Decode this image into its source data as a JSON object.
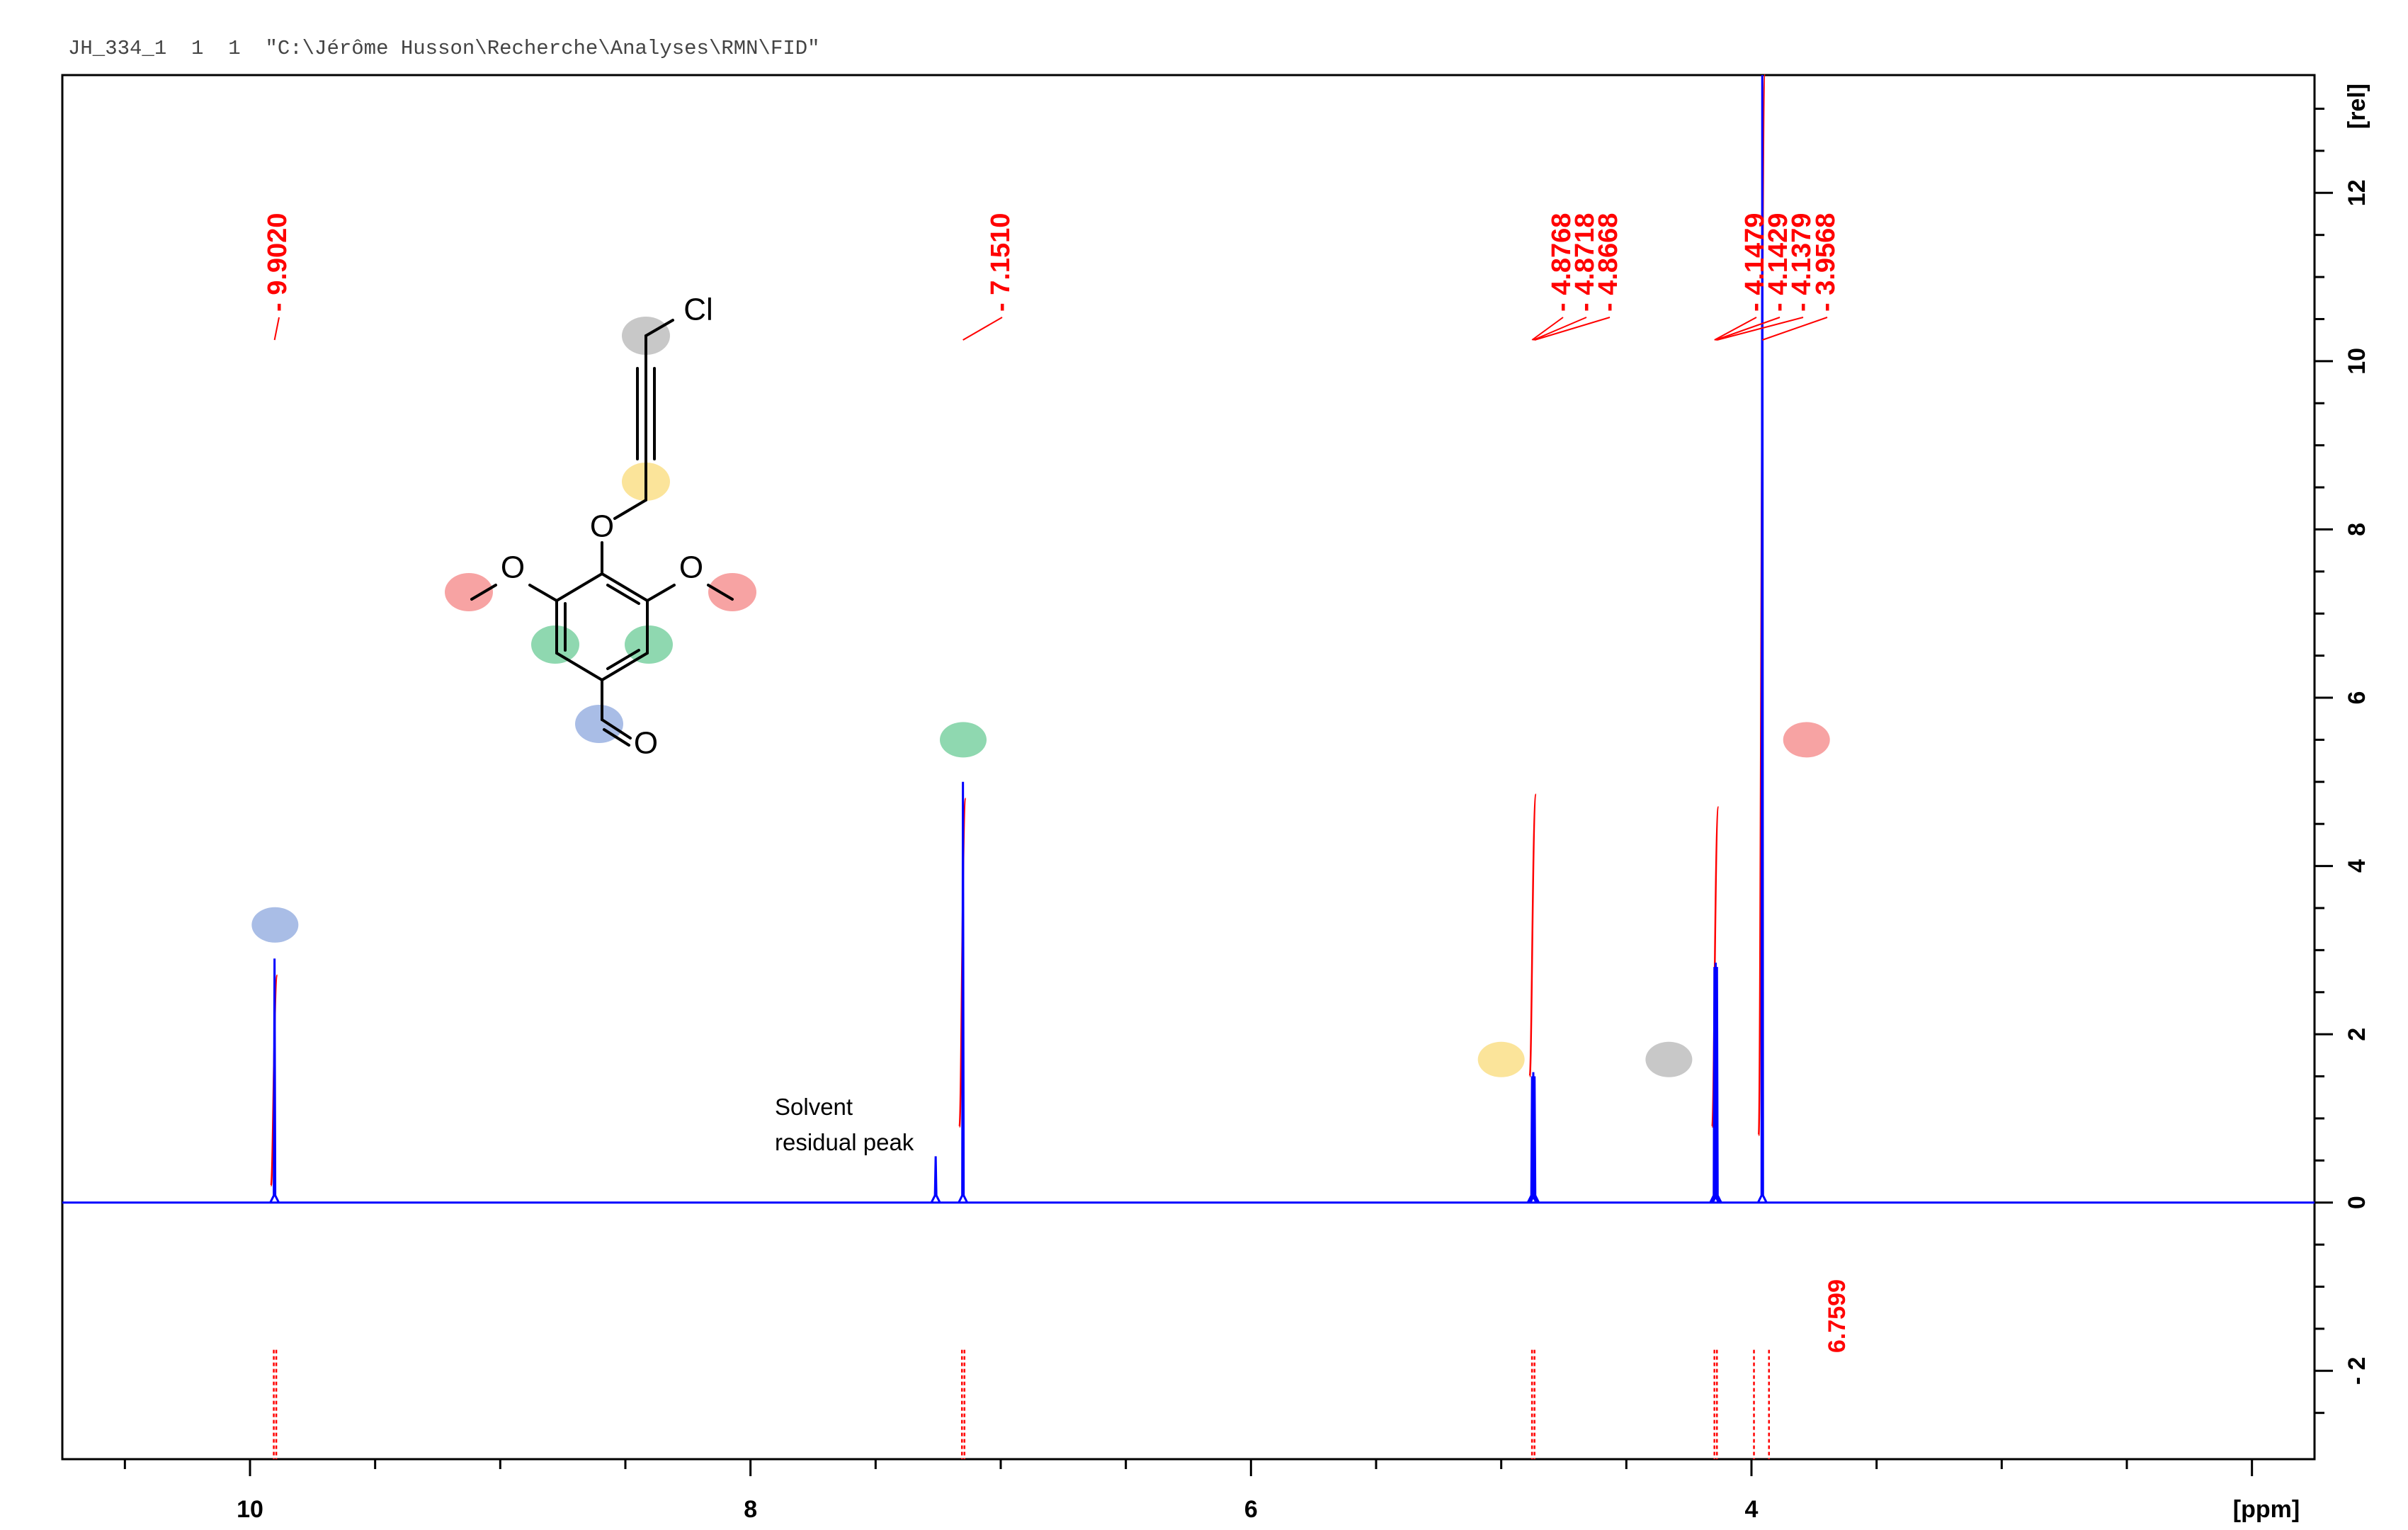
{
  "header": "JH_334_1  1  1  \"C:\\Jérôme Husson\\Recherche\\Analyses\\RMN\\FID\"",
  "colors": {
    "spectrum": "#0000ff",
    "integral": "#ff0000",
    "markers": {
      "blue": "#a9bde6",
      "green": "#8fd8b0",
      "yellow": "#fbe49a",
      "gray": "#c8c8c8",
      "red": "#f7a3a3"
    }
  },
  "chart_data": {
    "type": "line",
    "xlabel": "[ppm]",
    "ylabel": "[rel]",
    "xlim": [
      10.75,
      1.75
    ],
    "ylim": [
      -3.05,
      13.4
    ],
    "x_ticks": [
      10,
      8,
      6,
      4
    ],
    "y_ticks": [
      -2,
      0,
      2,
      4,
      6,
      8,
      10,
      12
    ],
    "peak_labels": [
      "9.9020",
      "7.1510",
      "4.8768",
      "4.8718",
      "4.8668",
      "4.1479",
      "4.1429",
      "4.1379",
      "3.9568"
    ],
    "peaks": [
      {
        "ppm": 9.902,
        "height": 2.9
      },
      {
        "ppm": 7.151,
        "height": 5.0
      },
      {
        "ppm": 7.26,
        "height": 0.55
      },
      {
        "ppm": 4.8768,
        "height": 1.5
      },
      {
        "ppm": 4.8718,
        "height": 1.55
      },
      {
        "ppm": 4.8668,
        "height": 1.5
      },
      {
        "ppm": 4.1479,
        "height": 2.8
      },
      {
        "ppm": 4.1429,
        "height": 2.85
      },
      {
        "ppm": 4.1379,
        "height": 2.8
      },
      {
        "ppm": 3.9568,
        "height": 13.4
      }
    ],
    "integral_labels": [
      "6.7599"
    ],
    "annotation": "Solvent\nresidual peak",
    "assignments": [
      {
        "color": "blue",
        "ppm": 9.9,
        "level": 3.3
      },
      {
        "color": "green",
        "ppm": 7.15,
        "level": 5.5
      },
      {
        "color": "yellow",
        "ppm": 5.0,
        "level": 1.7
      },
      {
        "color": "gray",
        "ppm": 4.33,
        "level": 1.7
      },
      {
        "color": "red",
        "ppm": 3.78,
        "level": 5.5
      }
    ]
  },
  "molecule": {
    "cl": "Cl",
    "o": "O"
  }
}
